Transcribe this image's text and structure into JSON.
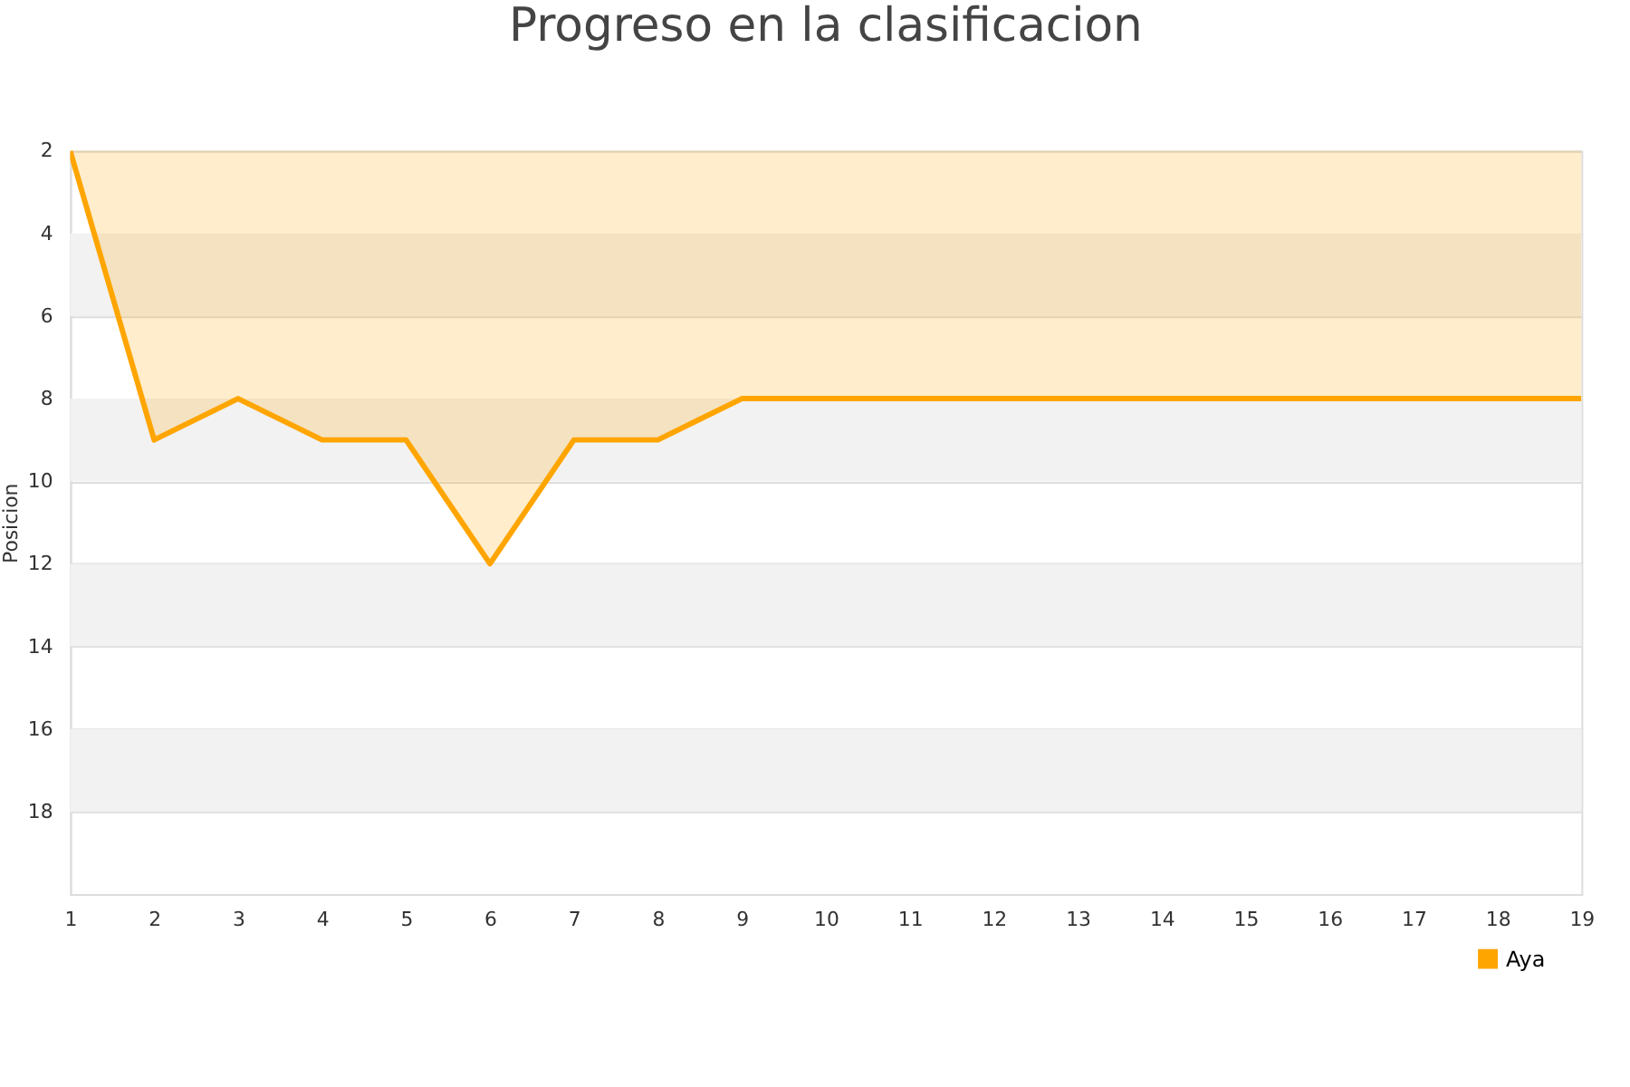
{
  "chart_data": {
    "type": "area",
    "title": "Progreso en la clasificacion",
    "ylabel": "Posicion",
    "x": [
      1,
      2,
      3,
      4,
      5,
      6,
      7,
      8,
      9,
      10,
      11,
      12,
      13,
      14,
      15,
      16,
      17,
      18,
      19
    ],
    "series": [
      {
        "name": "Aya",
        "color": "#ffa500",
        "values": [
          2,
          9,
          8,
          9,
          9,
          12,
          9,
          9,
          8,
          8,
          8,
          8,
          8,
          8,
          8,
          8,
          8,
          8,
          8
        ]
      }
    ],
    "xlim": [
      1,
      19
    ],
    "xticks": [
      1,
      2,
      3,
      4,
      5,
      6,
      7,
      8,
      9,
      10,
      11,
      12,
      13,
      14,
      15,
      16,
      17,
      18,
      19
    ],
    "ylim": [
      20,
      2
    ],
    "yticks": [
      2,
      4,
      6,
      8,
      10,
      12,
      14,
      16,
      18
    ],
    "grid": "y",
    "legend": "bottom right"
  }
}
